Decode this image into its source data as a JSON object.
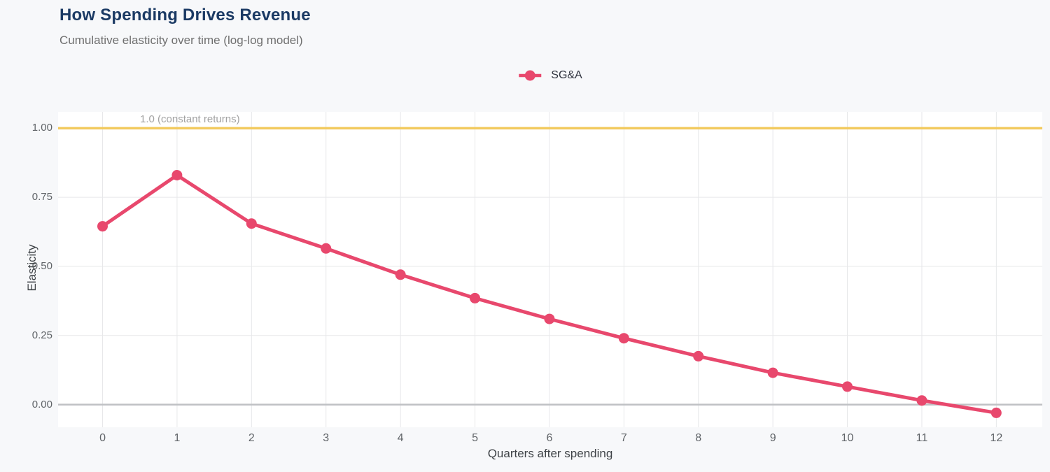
{
  "header": {
    "title": "How Spending Drives Revenue",
    "subtitle": "Cumulative elasticity over time (log-log model)"
  },
  "colors": {
    "page_background": "#f7f8fa",
    "panel_background": "#ffffff",
    "grid": "#e7e8ea",
    "zero_line": "#bfc1c4",
    "series": "#e8486d",
    "reference": "#f2ca5f",
    "title": "#1b3a64",
    "tick_label": "#606468"
  },
  "chart_data": {
    "type": "line",
    "title": "How Spending Drives Revenue",
    "subtitle": "Cumulative elasticity over time (log-log model)",
    "xlabel": "Quarters after spending",
    "ylabel": "Elasticity",
    "x": [
      0,
      1,
      2,
      3,
      4,
      5,
      6,
      7,
      8,
      9,
      10,
      11,
      12
    ],
    "series": [
      {
        "name": "SG&A",
        "color": "#e8486d",
        "values": [
          0.645,
          0.83,
          0.655,
          0.565,
          0.47,
          0.385,
          0.31,
          0.24,
          0.175,
          0.115,
          0.065,
          0.015,
          -0.03
        ]
      }
    ],
    "reference_line": {
      "y": 1.0,
      "label": "1.0 (constant returns)",
      "color": "#f2ca5f"
    },
    "xticks": [
      0,
      1,
      2,
      3,
      4,
      5,
      6,
      7,
      8,
      9,
      10,
      11,
      12
    ],
    "xtick_labels": [
      "0",
      "1",
      "2",
      "3",
      "4",
      "5",
      "6",
      "7",
      "8",
      "9",
      "10",
      "11",
      "12"
    ],
    "yticks": [
      0,
      0.25,
      0.5,
      0.75,
      1.0
    ],
    "ytick_labels": [
      "0.00",
      "0.25",
      "0.50",
      "0.75",
      "1.00"
    ],
    "xlim": [
      -0.597,
      12.617
    ],
    "ylim": [
      -0.082,
      1.059
    ],
    "grid": true,
    "legend_position": "top-center"
  }
}
